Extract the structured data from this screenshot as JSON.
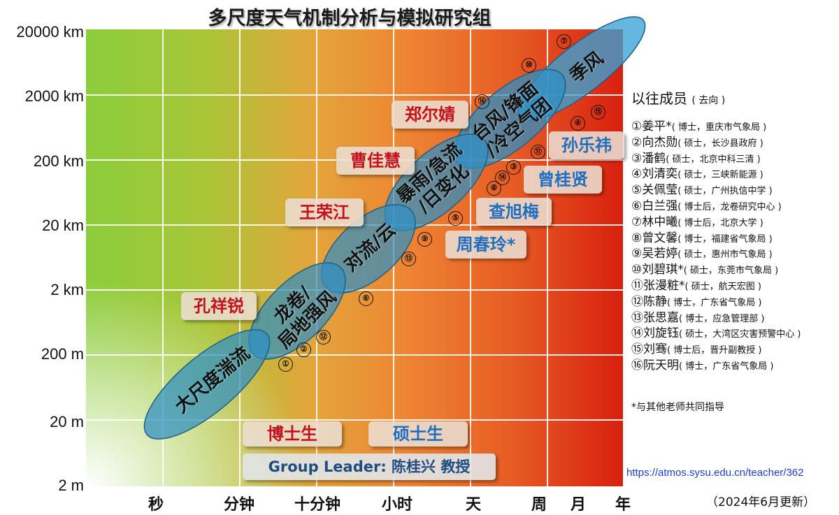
{
  "title": "多尺度天气机制分析与模拟研究组",
  "y_axis_ticks": [
    "20000 km",
    "2000 km",
    "200 km",
    "20 km",
    "2 km",
    "200 m",
    "20 m",
    "2 m"
  ],
  "x_axis_ticks": [
    "秒",
    "分钟",
    "十分钟",
    "小时",
    "天",
    "周",
    "月",
    "年"
  ],
  "phenomena": [
    {
      "id": "turbulence",
      "label": "大尺度湍流"
    },
    {
      "id": "tornado",
      "label": "龙卷/\n局地强风"
    },
    {
      "id": "convection",
      "label": "对流/云"
    },
    {
      "id": "rainstorm",
      "label": "暴雨/急流\n/日变化"
    },
    {
      "id": "typhoon",
      "label": "台风/锋面\n/冷空气团"
    },
    {
      "id": "monsoon",
      "label": "季风"
    }
  ],
  "students": [
    {
      "name": "郑尔婧",
      "type": "phd"
    },
    {
      "name": "曹佳慧",
      "type": "phd"
    },
    {
      "name": "王荣江",
      "type": "phd"
    },
    {
      "name": "孔祥锐",
      "type": "phd"
    },
    {
      "name": "孙乐祎",
      "type": "master"
    },
    {
      "name": "曾桂贤",
      "type": "master"
    },
    {
      "name": "查旭梅",
      "type": "master"
    },
    {
      "name": "周春玲*",
      "type": "master"
    }
  ],
  "legend": {
    "phd": "博士生",
    "master": "硕士生"
  },
  "group_leader": "Group Leader:  陈桂兴 教授",
  "member_markers": [
    "⑦",
    "⑩",
    "⑯",
    "⑮",
    "④",
    "⑪",
    "③",
    "⑭",
    "⑧",
    "⑤",
    "⑨",
    "⑬",
    "⑥",
    "⑫",
    "②",
    "①"
  ],
  "alumni_title": "以往成员",
  "alumni_title_sub": "( 去向 )",
  "alumni": [
    {
      "name": "①姜平*",
      "detail": "( 博士，重庆市气象局 )"
    },
    {
      "name": "②向杰勋",
      "detail": "( 硕士，长沙县政府 )"
    },
    {
      "name": "③潘鹤",
      "detail": "( 硕士，北京中科三清 )"
    },
    {
      "name": "④刘清奕",
      "detail": "( 硕士，三峡新能源 )"
    },
    {
      "name": "⑤关佩莹",
      "detail": "( 硕士，广州执信中学 )"
    },
    {
      "name": "⑥白兰强",
      "detail": "( 博士后，龙卷研究中心 )"
    },
    {
      "name": "⑦林中曦",
      "detail": "( 博士后，北京大学 )"
    },
    {
      "name": "⑧曾文馨",
      "detail": "( 博士，福建省气象局 )"
    },
    {
      "name": "⑨吴若婷",
      "detail": "( 硕士，惠州市气象局 )"
    },
    {
      "name": "⑩刘碧琪*",
      "detail": "( 硕士，东莞市气象局 )"
    },
    {
      "name": "⑪张漫粧*",
      "detail": "( 硕士，航天宏图 )"
    },
    {
      "name": "⑫陈静",
      "detail": "( 博士，广东省气象局 )"
    },
    {
      "name": "⑬张思嘉",
      "detail": "( 博士，应急管理部 )"
    },
    {
      "name": "⑭刘旋钰",
      "detail": "( 硕士，大湾区灾害预警中心 )"
    },
    {
      "name": "⑮刘骞",
      "detail": "( 博士后，晋升副教授 )"
    },
    {
      "name": "⑯阮天明",
      "detail": "( 博士，广东省气象局 )"
    }
  ],
  "note": "*与其他老师共同指导",
  "url": "https://atmos.sysu.edu.cn/teacher/362",
  "updated": "（2024年6月更新）",
  "colors": {
    "phd_text": "#c0121f",
    "master_text": "#1f6fc0",
    "ellipse_fill": "#2e8fc4",
    "leader_text": "#1f4d82"
  }
}
